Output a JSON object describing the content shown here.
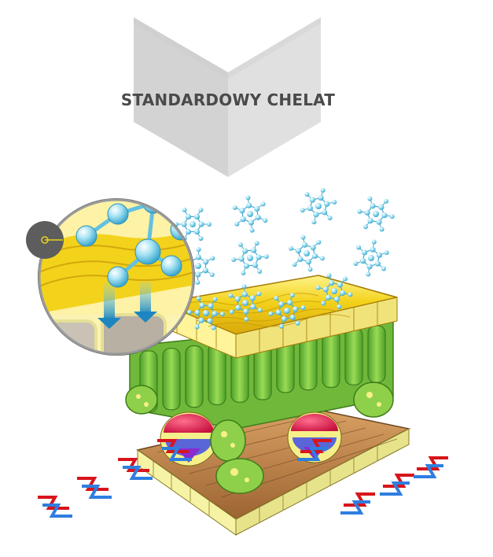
{
  "header": {
    "title": "STANDARDOWY CHELAT"
  },
  "colors": {
    "banner": "#d7d7d7",
    "cuticle": "#f2cf1a",
    "mesophyll": "#7dc242",
    "cell_wall": "#f5f08a",
    "vascular_xylem": "#e8174c",
    "vascular_phloem": "#5a66d8",
    "molecule": "#7fd3ec",
    "arrow_red": "#d8141c",
    "arrow_blue": "#2f7ee0"
  },
  "icons": {
    "zoom_pin": "magnifier-pin-icon",
    "molecule": "chelate-molecule-icon",
    "arrow": "chevron-arrow-icon"
  }
}
